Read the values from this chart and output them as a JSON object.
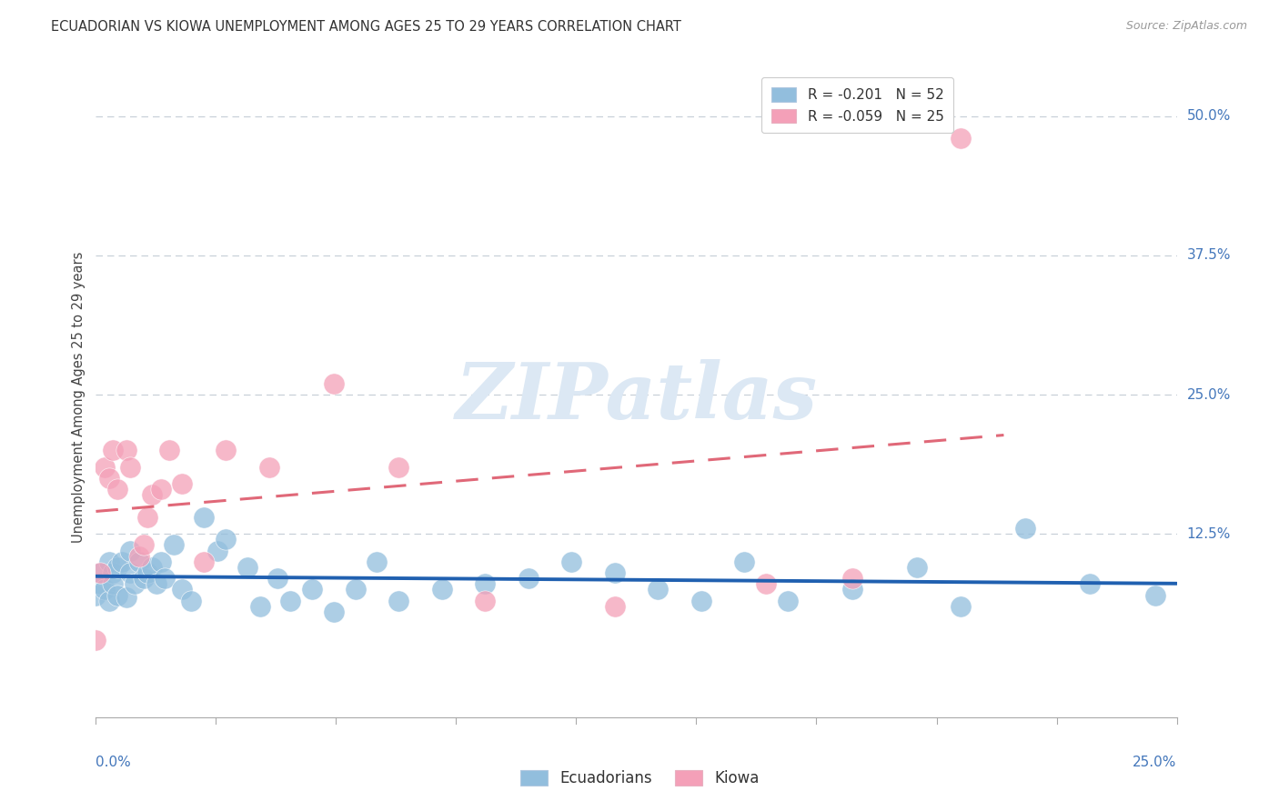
{
  "title": "ECUADORIAN VS KIOWA UNEMPLOYMENT AMONG AGES 25 TO 29 YEARS CORRELATION CHART",
  "source": "Source: ZipAtlas.com",
  "ylabel": "Unemployment Among Ages 25 to 29 years",
  "xlim": [
    0.0,
    0.25
  ],
  "ylim": [
    -0.04,
    0.535
  ],
  "ytick_positions": [
    0.125,
    0.25,
    0.375,
    0.5
  ],
  "ytick_labels_right": [
    "12.5%",
    "25.0%",
    "37.5%",
    "50.0%"
  ],
  "legend_line1": "R = -0.201   N = 52",
  "legend_line2": "R = -0.059   N = 25",
  "ecu_color": "#92bedd",
  "kiowa_color": "#f4a0b8",
  "ecu_line_color": "#2060b0",
  "kiowa_line_color": "#e06878",
  "watermark_text": "ZIPatlas",
  "watermark_color": "#dce8f4",
  "background_color": "#ffffff",
  "grid_color": "#c8d0d8",
  "ecuadorians_x": [
    0.0,
    0.001,
    0.001,
    0.002,
    0.003,
    0.003,
    0.004,
    0.004,
    0.005,
    0.005,
    0.006,
    0.007,
    0.008,
    0.008,
    0.009,
    0.01,
    0.011,
    0.012,
    0.013,
    0.014,
    0.015,
    0.016,
    0.018,
    0.02,
    0.022,
    0.025,
    0.028,
    0.03,
    0.035,
    0.038,
    0.042,
    0.045,
    0.05,
    0.055,
    0.06,
    0.065,
    0.07,
    0.08,
    0.09,
    0.1,
    0.11,
    0.12,
    0.13,
    0.14,
    0.15,
    0.16,
    0.175,
    0.19,
    0.2,
    0.215,
    0.23,
    0.245
  ],
  "ecuadorians_y": [
    0.07,
    0.08,
    0.09,
    0.075,
    0.1,
    0.065,
    0.09,
    0.08,
    0.095,
    0.07,
    0.1,
    0.068,
    0.11,
    0.09,
    0.08,
    0.1,
    0.085,
    0.09,
    0.095,
    0.08,
    0.1,
    0.085,
    0.115,
    0.075,
    0.065,
    0.14,
    0.11,
    0.12,
    0.095,
    0.06,
    0.085,
    0.065,
    0.075,
    0.055,
    0.075,
    0.1,
    0.065,
    0.075,
    0.08,
    0.085,
    0.1,
    0.09,
    0.075,
    0.065,
    0.1,
    0.065,
    0.075,
    0.095,
    0.06,
    0.13,
    0.08,
    0.07
  ],
  "kiowa_x": [
    0.0,
    0.001,
    0.002,
    0.003,
    0.004,
    0.005,
    0.007,
    0.008,
    0.01,
    0.011,
    0.012,
    0.013,
    0.015,
    0.017,
    0.02,
    0.025,
    0.03,
    0.04,
    0.055,
    0.07,
    0.09,
    0.12,
    0.155,
    0.175,
    0.2
  ],
  "kiowa_y": [
    0.03,
    0.09,
    0.185,
    0.175,
    0.2,
    0.165,
    0.2,
    0.185,
    0.105,
    0.115,
    0.14,
    0.16,
    0.165,
    0.2,
    0.17,
    0.1,
    0.2,
    0.185,
    0.26,
    0.185,
    0.065,
    0.06,
    0.08,
    0.085,
    0.48
  ]
}
